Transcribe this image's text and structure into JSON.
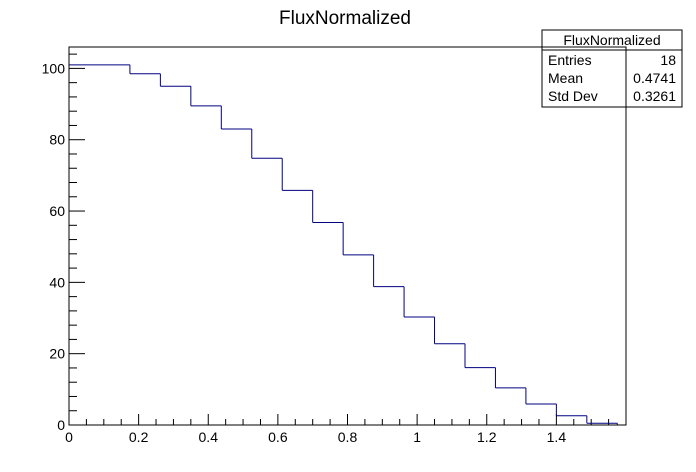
{
  "chart_data": {
    "type": "bar",
    "title": "FluxNormalized",
    "xlabel": "",
    "ylabel": "",
    "xlim": [
      0,
      1.6
    ],
    "ylim": [
      0,
      106
    ],
    "bin_edges": [
      0,
      0.0875,
      0.175,
      0.2625,
      0.35,
      0.4375,
      0.525,
      0.6125,
      0.7,
      0.7875,
      0.875,
      0.9625,
      1.05,
      1.1375,
      1.225,
      1.3125,
      1.4,
      1.4875,
      1.575
    ],
    "values": [
      101,
      101,
      98.5,
      95,
      89.5,
      83,
      74.8,
      65.8,
      56.8,
      47.7,
      38.8,
      30.3,
      22.8,
      16.1,
      10.4,
      5.9,
      2.6,
      0.5
    ],
    "x_ticks": [
      "0",
      "0.2",
      "0.4",
      "0.6",
      "0.8",
      "1",
      "1.2",
      "1.4"
    ],
    "x_tick_values": [
      0,
      0.2,
      0.4,
      0.6,
      0.8,
      1.0,
      1.2,
      1.4
    ],
    "y_ticks": [
      "0",
      "20",
      "40",
      "60",
      "80",
      "100"
    ],
    "y_tick_values": [
      0,
      20,
      40,
      60,
      80,
      100
    ],
    "grid": false,
    "line_color": "#000080",
    "stats_box": {
      "title": "FluxNormalized",
      "placement": "top-right",
      "rows": [
        {
          "label": "Entries",
          "value": "18"
        },
        {
          "label": "Mean",
          "value": "0.4741"
        },
        {
          "label": "Std Dev",
          "value": "0.3261"
        }
      ]
    }
  }
}
